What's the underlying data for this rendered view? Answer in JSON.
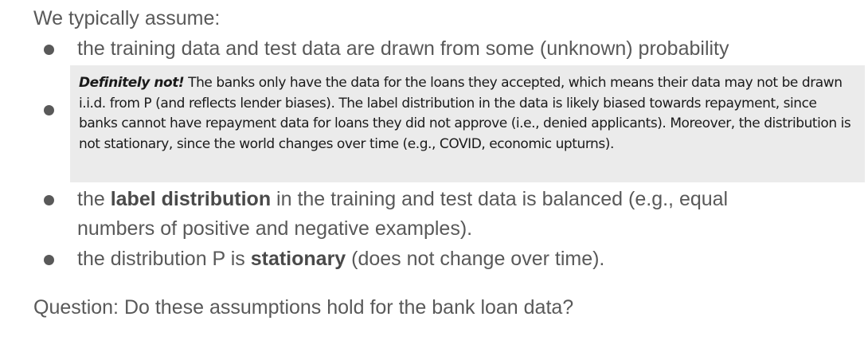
{
  "intro": "We typically assume:",
  "items": [
    {
      "text": "the training data and test data are drawn from some (unknown) probability"
    },
    {
      "note_lead": "Definitely not!",
      "note_body": " The banks only have the data for the loans they accepted, which means their data may not be drawn i.i.d. from P (and reflects lender biases). The label distribution in the data is likely biased towards repayment, since banks cannot have repayment data for loans they did not approve (i.e., denied applicants). Moreover, the distribution is not stationary, since the world changes over time (e.g., COVID, economic upturns)."
    },
    {
      "pre": "the ",
      "bold": "label distribution",
      "post_line1": " in the training and test data is balanced (e.g., equal",
      "line2": "numbers of positive and negative examples)."
    },
    {
      "pre": "the distribution P is ",
      "bold": "stationary",
      "post": " (does not change over time)."
    }
  ],
  "question": "Question: Do these assumptions hold for the bank loan data?"
}
